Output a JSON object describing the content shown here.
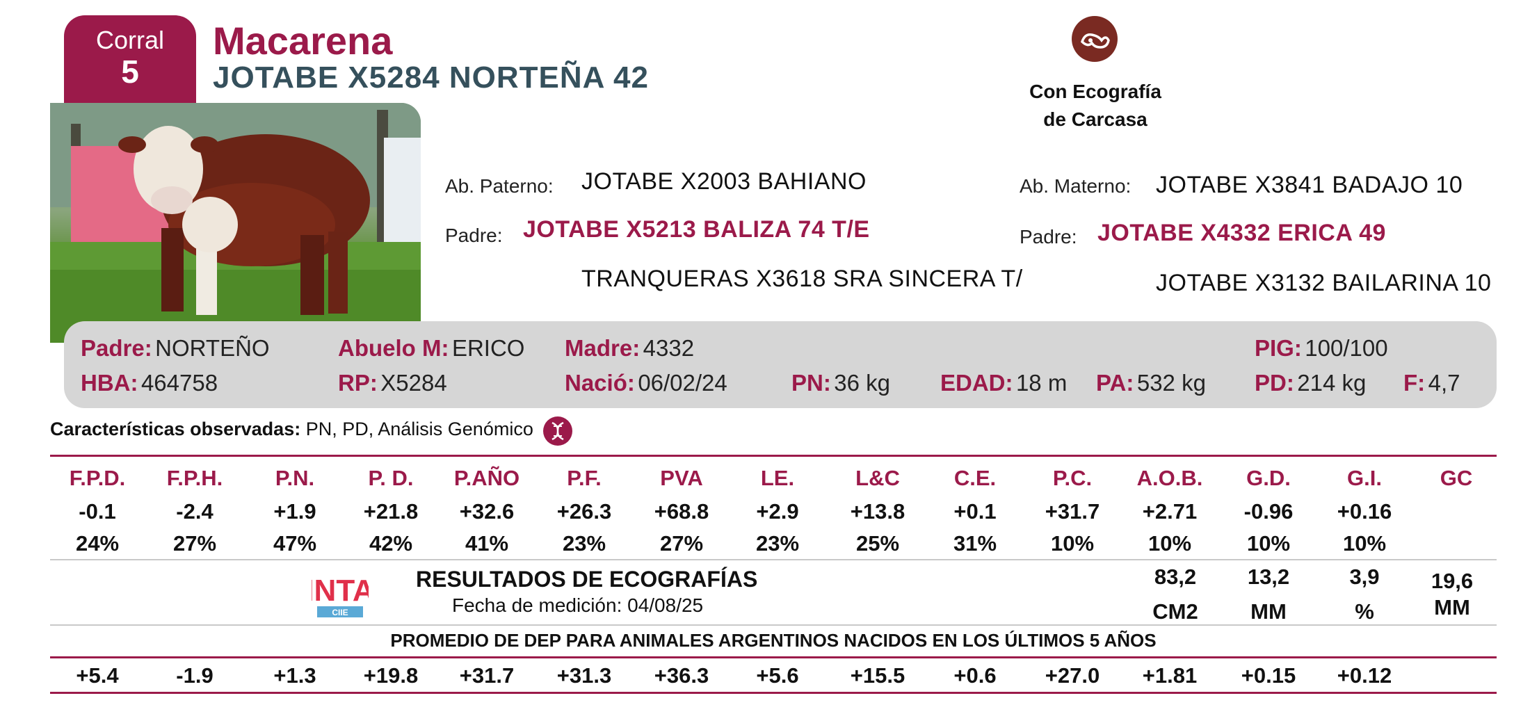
{
  "header": {
    "corral_label": "Corral",
    "corral_number": "5",
    "name": "Macarena",
    "registration": "JOTABE X5284 NORTEÑA 42",
    "eco_badge_line1": "Con Ecografía",
    "eco_badge_line2": "de Carcasa"
  },
  "pedigree": {
    "paternal_grandfather_label": "Ab. Paterno:",
    "paternal_grandfather": "JOTABE X2003 BAHIANO",
    "father_label": "Padre:",
    "father": "JOTABE X5213 BALIZA 74 T/E",
    "paternal_grandmother": "TRANQUERAS X3618 SRA SINCERA T/",
    "maternal_grandfather_label": "Ab. Materno:",
    "maternal_grandfather": "JOTABE X3841 BADAJO 10",
    "mother_father_label": "Padre:",
    "mother": "JOTABE X4332 ERICA 49",
    "maternal_grandmother": "JOTABE X3132 BAILARINA 10"
  },
  "summary": {
    "padre_label": "Padre:",
    "padre": "NORTEÑO",
    "abuelo_label": "Abuelo M:",
    "abuelo": "ERICO",
    "madre_label": "Madre:",
    "madre": "4332",
    "pig_label": "PIG:",
    "pig": "100/100",
    "hba_label": "HBA:",
    "hba": "464758",
    "rp_label": "RP:",
    "rp": "X5284",
    "nacio_label": "Nació:",
    "nacio": "06/02/24",
    "pn_label": "PN:",
    "pn": "36 kg",
    "edad_label": "EDAD:",
    "edad": "18 m",
    "pa_label": "PA:",
    "pa": "532 kg",
    "pd_label": "PD:",
    "pd": "214 kg",
    "f_label": "F:",
    "f": "4,7"
  },
  "characteristics": {
    "label": "Características observadas:",
    "value": "PN, PD, Análisis Genómico"
  },
  "dep_table": {
    "headers": [
      "F.P.D.",
      "F.P.H.",
      "P.N.",
      "P. D.",
      "P.AÑO",
      "P.F.",
      "PVA",
      "LE.",
      "L&C",
      "C.E.",
      "P.C.",
      "A.O.B.",
      "G.D.",
      "G.I.",
      "GC"
    ],
    "values": [
      "-0.1",
      "-2.4",
      "+1.9",
      "+21.8",
      "+32.6",
      "+26.3",
      "+68.8",
      "+2.9",
      "+13.8",
      "+0.1",
      "+31.7",
      "+2.71",
      "-0.96",
      "+0.16",
      ""
    ],
    "precision": [
      "24%",
      "27%",
      "47%",
      "42%",
      "41%",
      "23%",
      "27%",
      "23%",
      "25%",
      "31%",
      "10%",
      "10%",
      "10%",
      "10%",
      ""
    ]
  },
  "ecography": {
    "title": "RESULTADOS DE ECOGRAFÍAS",
    "date": "Fecha de medición: 04/08/25",
    "logo_text": "INTA",
    "logo_sub": "CIIE",
    "aob": "83,2",
    "aob_unit": "CM2",
    "gd": "13,2",
    "gd_unit": "MM",
    "gi": "3,9",
    "gi_unit": "%",
    "gc": "19,6",
    "gc_unit": "MM"
  },
  "average": {
    "title": "PROMEDIO DE DEP PARA ANIMALES ARGENTINOS NACIDOS EN LOS ÚLTIMOS 5 AÑOS",
    "values": [
      "+5.4",
      "-1.9",
      "+1.3",
      "+19.8",
      "+31.7",
      "+31.3",
      "+36.3",
      "+5.6",
      "+15.5",
      "+0.6",
      "+27.0",
      "+1.81",
      "+0.15",
      "+0.12",
      ""
    ]
  },
  "colors": {
    "accent": "#9b1a4a",
    "slate": "#35505c",
    "panel": "#d6d6d6"
  }
}
